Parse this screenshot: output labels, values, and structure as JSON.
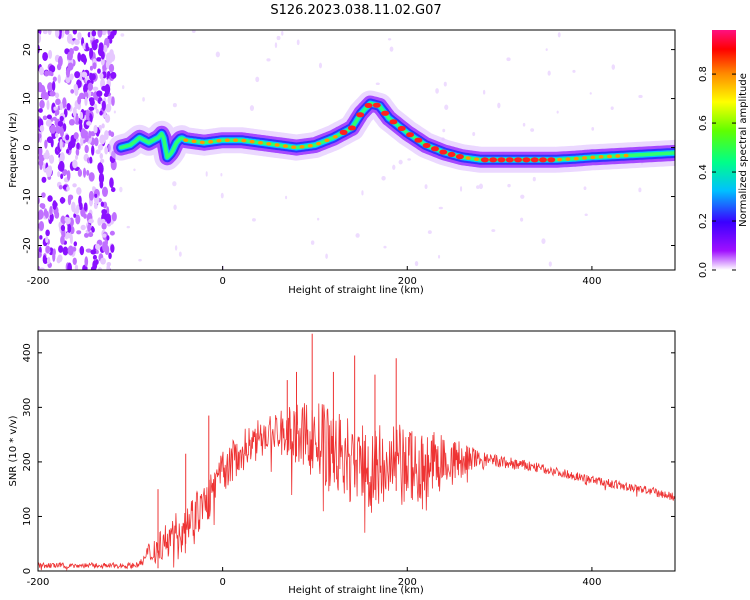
{
  "title": "S126.2023.038.11.02.G07",
  "chart_data": [
    {
      "type": "heatmap",
      "xlabel": "Height of straight line (km)",
      "ylabel": "Frequency (Hz)",
      "xlim": [
        -200,
        490
      ],
      "ylim": [
        -25,
        24
      ],
      "xticks": [
        -200,
        0,
        200,
        400
      ],
      "yticks": [
        -20,
        -10,
        0,
        10,
        20
      ],
      "grid": false,
      "ridge": {
        "x": [
          -110,
          -100,
          -90,
          -80,
          -70,
          -65,
          -60,
          -55,
          -50,
          -45,
          -40,
          -20,
          0,
          20,
          40,
          60,
          80,
          100,
          120,
          140,
          150,
          160,
          170,
          180,
          200,
          220,
          240,
          260,
          280,
          300,
          320,
          340,
          360,
          380,
          400,
          420,
          440,
          460,
          480,
          490
        ],
        "y": [
          0,
          0.5,
          2,
          1,
          2,
          3,
          -2,
          -1,
          1,
          2,
          1.5,
          1,
          1.5,
          1.5,
          1,
          0.5,
          0,
          0.5,
          2,
          4,
          7,
          9,
          8.5,
          6,
          3,
          0.5,
          -1,
          -2,
          -2.5,
          -2.5,
          -2.5,
          -2.5,
          -2.5,
          -2.3,
          -2,
          -1.8,
          -1.6,
          -1.4,
          -1.2,
          -1.1
        ]
      },
      "colorbar": {
        "label": "Normalized spectral amplitude",
        "ticks": [
          "0.0",
          "0.2",
          "0.4",
          "0.6",
          "0.8"
        ],
        "range": [
          0,
          0.98
        ]
      }
    },
    {
      "type": "line",
      "xlabel": "Height of straight line (km)",
      "ylabel": "SNR (10 * v/v)",
      "xlim": [
        -200,
        490
      ],
      "ylim": [
        0,
        440
      ],
      "xticks": [
        -200,
        0,
        200,
        400
      ],
      "yticks": [
        0,
        100,
        200,
        300,
        400
      ],
      "grid": false,
      "color": "#ee3333",
      "envelope": {
        "x": [
          -200,
          -150,
          -100,
          -90,
          -80,
          -60,
          -40,
          -20,
          -10,
          0,
          20,
          40,
          60,
          80,
          100,
          120,
          140,
          160,
          180,
          200,
          220,
          250,
          270,
          300,
          340,
          380,
          420,
          460,
          490
        ],
        "y": [
          10,
          10,
          10,
          12,
          30,
          60,
          90,
          120,
          150,
          180,
          220,
          250,
          255,
          250,
          240,
          220,
          200,
          190,
          185,
          190,
          195,
          200,
          205,
          200,
          190,
          175,
          160,
          148,
          135
        ]
      },
      "spread": {
        "x": [
          -200,
          -90,
          -80,
          -40,
          0,
          50,
          80,
          100,
          150,
          200,
          250,
          280,
          350,
          490
        ],
        "y": [
          5,
          5,
          25,
          40,
          40,
          30,
          55,
          75,
          85,
          80,
          45,
          15,
          8,
          8
        ]
      },
      "spikes": [
        {
          "x": -70,
          "y": 150
        },
        {
          "x": -40,
          "y": 215
        },
        {
          "x": -15,
          "y": 285
        },
        {
          "x": 70,
          "y": 350
        },
        {
          "x": 80,
          "y": 365
        },
        {
          "x": 97,
          "y": 435
        },
        {
          "x": 120,
          "y": 365
        },
        {
          "x": 143,
          "y": 395
        },
        {
          "x": 165,
          "y": 360
        },
        {
          "x": 188,
          "y": 390
        }
      ]
    }
  ]
}
